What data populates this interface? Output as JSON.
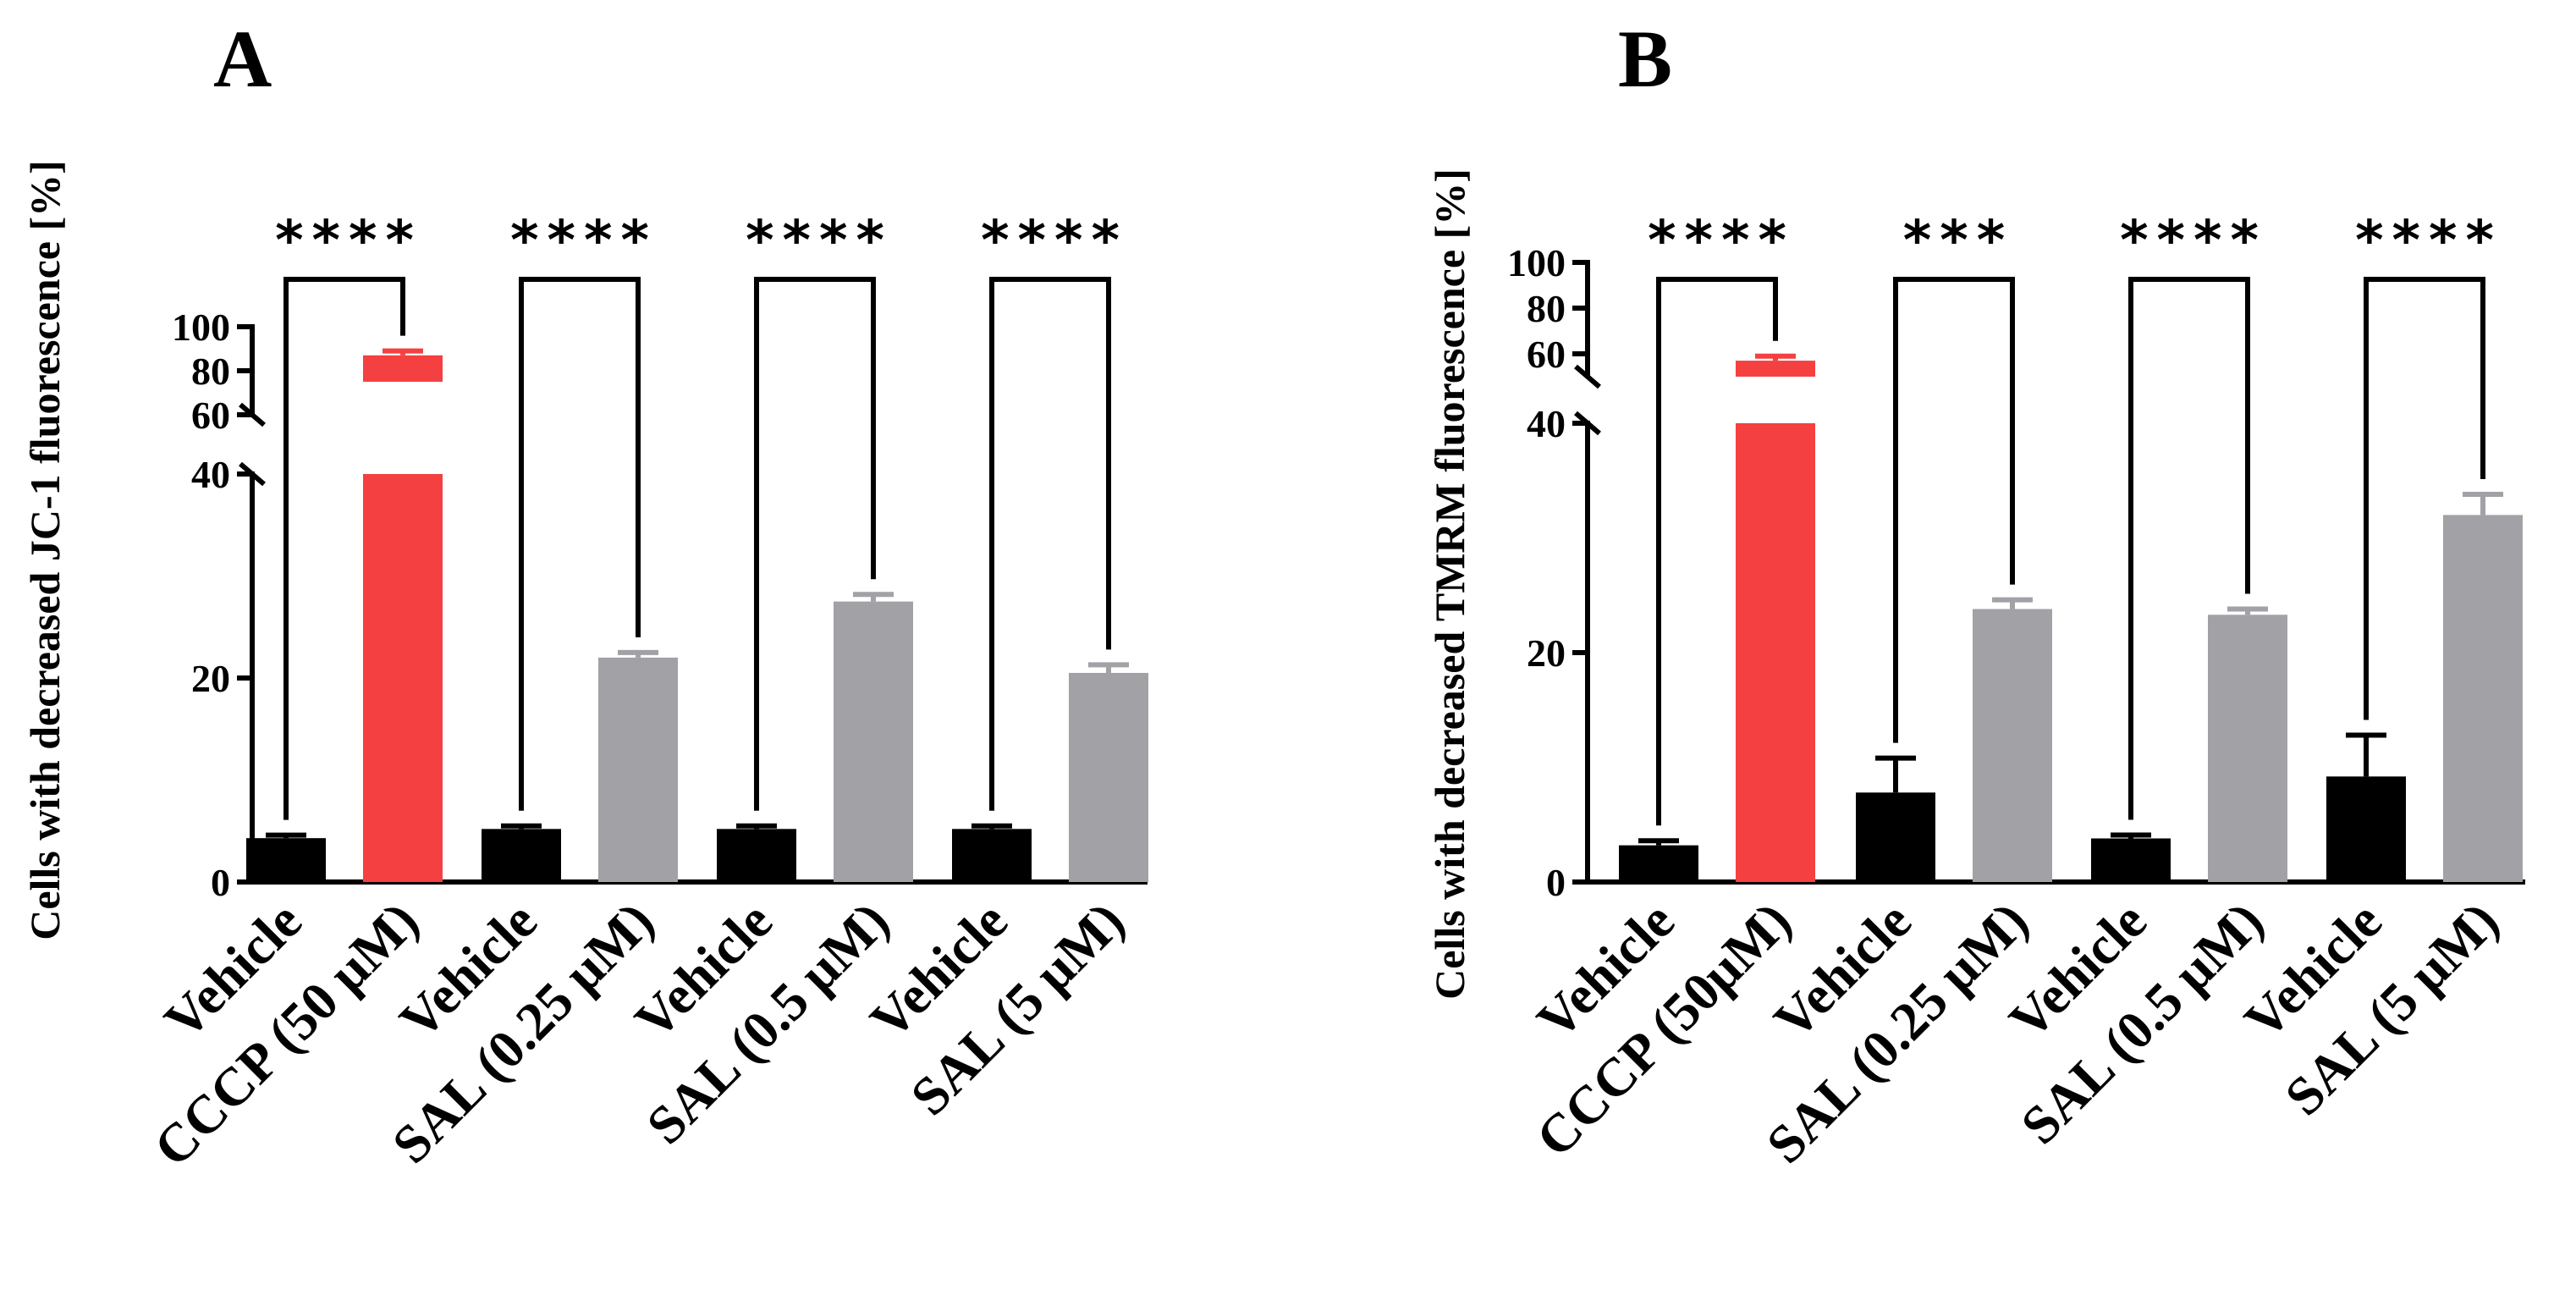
{
  "chart_data": [
    {
      "panel": "A",
      "type": "bar",
      "ylabel": "Cells with decreased JC-1 fluorescence [%]",
      "categories": [
        "Vehicle",
        "CCCP (50 μM)",
        "Vehicle",
        "SAL (0.25 μM)",
        "Vehicle",
        "SAL (0.5 μM)",
        "Vehicle",
        "SAL (5 μM)"
      ],
      "values": [
        4.3,
        87,
        5.2,
        22.0,
        5.2,
        27.5,
        5.2,
        20.5
      ],
      "errors": [
        0.3,
        2,
        0.3,
        0.5,
        0.3,
        0.7,
        0.3,
        0.8
      ],
      "colors": [
        "#000000",
        "#f44040",
        "#000000",
        "#a2a1a6",
        "#000000",
        "#a2a1a6",
        "#000000",
        "#a2a1a6"
      ],
      "error_colors": [
        "#000000",
        "#f44040",
        "#000000",
        "#a2a1a6",
        "#000000",
        "#a2a1a6",
        "#000000",
        "#a2a1a6"
      ],
      "y_axis_lower": {
        "range": [
          0,
          40
        ],
        "ticks": [
          0,
          20,
          40
        ],
        "tick_labels": [
          "0",
          "20",
          "40"
        ]
      },
      "y_axis_upper": {
        "range": [
          60,
          100
        ],
        "ticks": [
          60,
          80,
          100
        ],
        "tick_labels": [
          "60",
          "80",
          "100"
        ]
      },
      "comparisons": [
        {
          "pair": [
            0,
            1
          ],
          "label": "****"
        },
        {
          "pair": [
            2,
            3
          ],
          "label": "****"
        },
        {
          "pair": [
            4,
            5
          ],
          "label": "****"
        },
        {
          "pair": [
            6,
            7
          ],
          "label": "****"
        }
      ]
    },
    {
      "panel": "B",
      "type": "bar",
      "ylabel": "Cells with decreased TMRM fluorescence [%]",
      "categories": [
        "Vehicle",
        "CCCP (50μM)",
        "Vehicle",
        "SAL (0.25 μM)",
        "Vehicle",
        "SAL (0.5 μM)",
        "Vehicle",
        "SAL (5 μM)"
      ],
      "values": [
        3.2,
        57,
        7.8,
        23.8,
        3.8,
        23.3,
        9.2,
        32.0
      ],
      "errors": [
        0.4,
        2,
        3.0,
        0.8,
        0.3,
        0.5,
        3.6,
        1.8
      ],
      "colors": [
        "#000000",
        "#f44040",
        "#000000",
        "#a2a1a6",
        "#000000",
        "#a2a1a6",
        "#000000",
        "#a2a1a6"
      ],
      "error_colors": [
        "#000000",
        "#f44040",
        "#000000",
        "#a2a1a6",
        "#000000",
        "#a2a1a6",
        "#000000",
        "#a2a1a6"
      ],
      "y_axis_lower": {
        "range": [
          0,
          40
        ],
        "ticks": [
          0,
          20,
          40
        ],
        "tick_labels": [
          "0",
          "20",
          "40"
        ]
      },
      "y_axis_upper": {
        "range": [
          50,
          100
        ],
        "ticks": [
          60,
          80,
          100
        ],
        "tick_labels": [
          "60",
          "80",
          "100"
        ]
      },
      "comparisons": [
        {
          "pair": [
            0,
            1
          ],
          "label": "****"
        },
        {
          "pair": [
            2,
            3
          ],
          "label": "***"
        },
        {
          "pair": [
            4,
            5
          ],
          "label": "****"
        },
        {
          "pair": [
            6,
            7
          ],
          "label": "****"
        }
      ]
    }
  ]
}
